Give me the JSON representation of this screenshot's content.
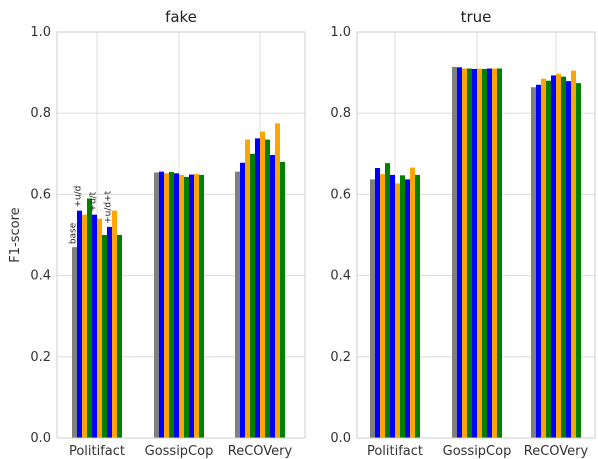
{
  "colors": {
    "base": "#808080",
    "u_d": "#0000ff",
    "u_t": "#ffa500",
    "u_d_t": "#008000"
  },
  "chart_data": [
    {
      "type": "bar",
      "title": "fake",
      "ylabel": "F1-score",
      "xlabel": "",
      "ylim": [
        0,
        1.0
      ],
      "yticks": [
        "0.0",
        "0.2",
        "0.4",
        "0.6",
        "0.8",
        "1.0"
      ],
      "grid": true,
      "categories": [
        "Politifact",
        "GossipCop",
        "ReCOVery"
      ],
      "bar_annotations": [
        "base",
        "+u/d",
        "+u/t",
        "+u/d+t"
      ],
      "groups": [
        {
          "category": "Politifact",
          "values": [
            0.47,
            0.56,
            0.55,
            0.59,
            0.55,
            0.54,
            0.5,
            0.52,
            0.56,
            0.5
          ]
        },
        {
          "category": "GossipCop",
          "values": [
            0.654,
            0.656,
            0.652,
            0.655,
            0.652,
            0.648,
            0.643,
            0.649,
            0.65,
            0.648
          ]
        },
        {
          "category": "ReCOVery",
          "values": [
            0.656,
            0.678,
            0.735,
            0.7,
            0.738,
            0.755,
            0.735,
            0.697,
            0.775,
            0.68
          ]
        }
      ]
    },
    {
      "type": "bar",
      "title": "true",
      "ylabel": "",
      "xlabel": "",
      "ylim": [
        0,
        1.0
      ],
      "yticks": [
        "0.0",
        "0.2",
        "0.4",
        "0.6",
        "0.8",
        "1.0"
      ],
      "grid": true,
      "categories": [
        "Politifact",
        "GossipCop",
        "ReCOVery"
      ],
      "groups": [
        {
          "category": "Politifact",
          "values": [
            0.637,
            0.665,
            0.65,
            0.677,
            0.648,
            0.627,
            0.647,
            0.637,
            0.666,
            0.648
          ]
        },
        {
          "category": "GossipCop",
          "values": [
            0.914,
            0.913,
            0.91,
            0.91,
            0.909,
            0.91,
            0.909,
            0.91,
            0.91,
            0.91
          ]
        },
        {
          "category": "ReCOVery",
          "values": [
            0.864,
            0.87,
            0.885,
            0.88,
            0.893,
            0.897,
            0.89,
            0.879,
            0.905,
            0.874
          ]
        }
      ]
    }
  ]
}
